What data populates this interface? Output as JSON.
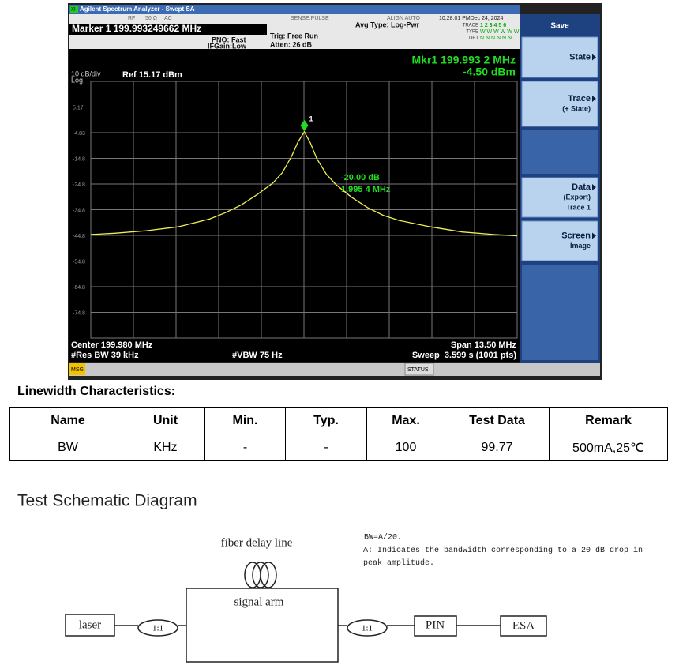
{
  "analyzer": {
    "window_title": "Agilent Spectrum Analyzer - Swept SA",
    "mode_icon": "XI",
    "status_flags": [
      "RF",
      "50 Ω",
      "AC",
      "SENSE:PULSE",
      "ALIGN AUTO"
    ],
    "datetime": "10:28:01 PMDec 24, 2024",
    "marker_readout": "Marker 1 199.993249662 MHz",
    "pno": "PNO: Fast",
    "ifgain": "IFGain:Low",
    "trig": "Trig: Free Run",
    "atten": "Atten: 26 dB",
    "avg_type": "Avg Type: Log-Pwr",
    "trace_rows": [
      [
        "TRACE",
        "1 2 3 4 5 6"
      ],
      [
        "TYPE",
        "W W W W W W"
      ],
      [
        "DET",
        "N N N N N N"
      ]
    ],
    "marker_freq": "Mkr1 199.993 2 MHz",
    "marker_amp": "-4.50 dBm",
    "scale": "10 dB/div",
    "scale_type": "Log",
    "ref_level": "Ref 15.17 dBm",
    "delta_amp": "-20.00 dB",
    "delta_freq": "1.995 4 MHz",
    "center": "Center 199.980 MHz",
    "res_bw": "#Res BW 39 kHz",
    "vbw": "#VBW 75 Hz",
    "span": "Span 13.50 MHz",
    "sweep": "Sweep  3.599 s (1001 pts)",
    "msg": "MSG",
    "status": "STATUS",
    "softkey_title": "Save",
    "softkeys": [
      [
        "State"
      ],
      [
        "Trace",
        "(+ State)"
      ],
      [
        "Data",
        "(Export)",
        "Trace 1"
      ],
      [
        "Screen",
        "Image"
      ]
    ]
  },
  "chart_data": {
    "type": "line",
    "x": [
      193.23,
      193.99,
      194.99,
      195.99,
      196.99,
      197.49,
      197.99,
      198.49,
      198.99,
      199.29,
      199.59,
      199.79,
      199.993,
      200.19,
      200.39,
      200.69,
      200.99,
      201.49,
      201.99,
      202.49,
      202.99,
      203.99,
      204.99,
      205.99,
      206.73
    ],
    "values": [
      -44.5,
      -44,
      -43,
      -41.5,
      -38.5,
      -36,
      -33,
      -29,
      -24.5,
      -20.5,
      -14,
      -8.5,
      -4.5,
      -9,
      -15,
      -21,
      -25,
      -30,
      -34,
      -37,
      -39,
      -41.5,
      -43.5,
      -44.5,
      -45
    ],
    "color": "#f0f050",
    "xlim": [
      193.23,
      206.73
    ],
    "ylim": [
      -84.83,
      15.17
    ],
    "yticks": [
      5.17,
      -4.83,
      {
        "value": -14.83,
        "label": "-14.8"
      },
      {
        "value": -24.83,
        "label": "-24.8"
      },
      {
        "value": -34.83,
        "label": "-34.8"
      },
      {
        "value": -44.83,
        "label": "-44.8"
      },
      {
        "value": -54.83,
        "label": "-54.8"
      },
      {
        "value": -64.83,
        "label": "-64.8"
      },
      {
        "value": -74.83,
        "label": "-74.8"
      }
    ],
    "grid": true,
    "marker": {
      "label": "1",
      "x": 199.9932,
      "y": -4.5,
      "color": "#22dd22"
    }
  },
  "table": {
    "title": "Linewidth Characteristics:",
    "headers": [
      "Name",
      "Unit",
      "Min.",
      "Typ.",
      "Max.",
      "Test Data",
      "Remark"
    ],
    "rows": [
      [
        "BW",
        "KHz",
        "-",
        "-",
        "100",
        "99.77",
        "500mA,25℃"
      ]
    ]
  },
  "schematic": {
    "title": "Test Schematic Diagram",
    "fiber_label": "fiber delay line",
    "arm_label": "signal arm",
    "laser": "laser",
    "coupler_in": "1:1",
    "coupler_out": "1:1",
    "pin": "PIN",
    "esa": "ESA",
    "note_formula": "BW=A/20.",
    "note_text": "A: Indicates the bandwidth corresponding to a 20 dB drop in peak amplitude."
  }
}
